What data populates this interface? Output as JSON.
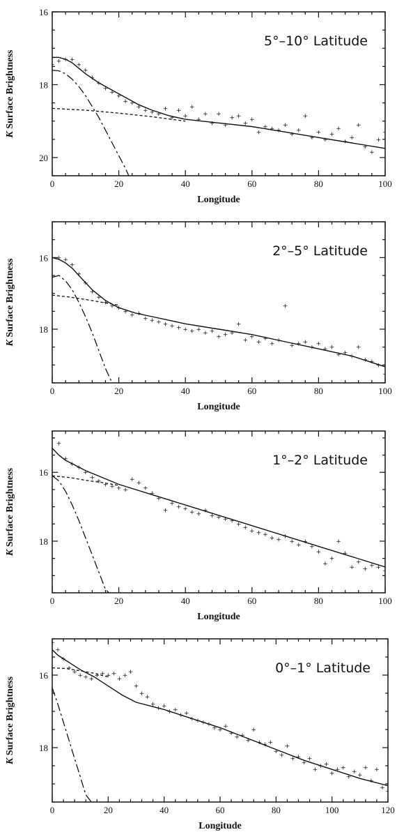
{
  "chart_data": [
    {
      "type": "scatter",
      "title": "5°–10° Latitude",
      "xlabel": "Longitude",
      "ylabel": "K Surface Brightness",
      "xlim": [
        0,
        100
      ],
      "ylim": [
        16,
        20.5
      ],
      "y_inverted": true,
      "xticks": [
        0,
        20,
        40,
        60,
        80,
        100
      ],
      "yticks": [
        16,
        18,
        20
      ],
      "series": [
        {
          "style": "plus-markers",
          "x": [
            0,
            2,
            4,
            6,
            8,
            10,
            12,
            14,
            16,
            18,
            20,
            22,
            24,
            26,
            28,
            30,
            32,
            34,
            36,
            38,
            40,
            42,
            44,
            46,
            48,
            50,
            52,
            54,
            56,
            58,
            60,
            62,
            64,
            66,
            68,
            70,
            72,
            74,
            76,
            78,
            80,
            82,
            84,
            86,
            88,
            90,
            92,
            94,
            96,
            98,
            100
          ],
          "y": [
            17.45,
            17.35,
            17.3,
            17.3,
            17.45,
            17.6,
            17.8,
            17.95,
            18.1,
            18.2,
            18.3,
            18.45,
            18.5,
            18.6,
            18.7,
            18.75,
            18.8,
            18.65,
            18.9,
            18.7,
            18.85,
            18.6,
            18.95,
            18.8,
            19.05,
            18.8,
            19.1,
            18.9,
            18.85,
            19.05,
            18.95,
            19.3,
            19.15,
            19.2,
            19.25,
            19.1,
            19.35,
            19.25,
            18.85,
            19.45,
            19.3,
            19.5,
            19.35,
            19.2,
            19.55,
            19.45,
            19.1,
            19.7,
            19.85,
            19.5,
            19.3
          ]
        },
        {
          "style": "solid",
          "x": [
            0,
            2,
            4,
            6,
            8,
            10,
            14,
            18,
            22,
            26,
            30,
            35,
            40,
            50,
            60,
            70,
            80,
            90,
            100
          ],
          "y": [
            17.25,
            17.25,
            17.3,
            17.4,
            17.55,
            17.7,
            17.95,
            18.15,
            18.35,
            18.55,
            18.7,
            18.85,
            18.95,
            19.05,
            19.15,
            19.3,
            19.45,
            19.6,
            19.75
          ]
        },
        {
          "style": "long-dash",
          "x": [
            0,
            2,
            4,
            6,
            8,
            10,
            12,
            14,
            16,
            18,
            20,
            22,
            23
          ],
          "y": [
            17.6,
            17.62,
            17.7,
            17.85,
            18.05,
            18.3,
            18.6,
            18.9,
            19.25,
            19.6,
            19.95,
            20.3,
            20.5
          ]
        },
        {
          "style": "short-dash",
          "x": [
            0,
            10,
            20,
            30,
            40
          ],
          "y": [
            18.65,
            18.7,
            18.78,
            18.88,
            19.0
          ]
        }
      ]
    },
    {
      "type": "scatter",
      "title": "2°–5° Latitude",
      "xlabel": "Longitude",
      "ylabel": "K Surface Brightness",
      "xlim": [
        0,
        100
      ],
      "ylim": [
        15,
        19.5
      ],
      "y_inverted": true,
      "xticks": [
        0,
        20,
        40,
        60,
        80,
        100
      ],
      "yticks": [
        16,
        18
      ],
      "series": [
        {
          "style": "plus-markers",
          "x": [
            0,
            2,
            4,
            6,
            8,
            10,
            12,
            14,
            16,
            18,
            20,
            22,
            24,
            26,
            28,
            30,
            32,
            34,
            36,
            38,
            40,
            42,
            44,
            46,
            48,
            50,
            52,
            54,
            56,
            58,
            60,
            62,
            64,
            66,
            68,
            70,
            72,
            74,
            76,
            78,
            80,
            82,
            84,
            86,
            88,
            90,
            92,
            94,
            96,
            98,
            100
          ],
          "y": [
            16.0,
            16.0,
            16.05,
            16.2,
            16.45,
            16.7,
            16.95,
            17.1,
            17.25,
            17.35,
            17.4,
            17.5,
            17.6,
            17.55,
            17.7,
            17.75,
            17.8,
            17.85,
            17.9,
            17.95,
            18.0,
            18.05,
            18.0,
            18.1,
            18.05,
            18.2,
            18.15,
            18.1,
            17.85,
            18.3,
            18.2,
            18.35,
            18.25,
            18.4,
            18.3,
            17.35,
            18.45,
            18.4,
            18.35,
            18.5,
            18.4,
            18.55,
            18.5,
            18.7,
            18.65,
            18.75,
            18.5,
            18.85,
            18.9,
            19.0,
            19.25
          ]
        },
        {
          "style": "solid",
          "x": [
            0,
            2,
            4,
            6,
            8,
            10,
            12,
            14,
            16,
            18,
            20,
            25,
            30,
            40,
            50,
            60,
            70,
            80,
            90,
            100
          ],
          "y": [
            16.0,
            16.05,
            16.15,
            16.3,
            16.5,
            16.7,
            16.9,
            17.05,
            17.2,
            17.3,
            17.4,
            17.55,
            17.65,
            17.85,
            18.0,
            18.15,
            18.35,
            18.55,
            18.75,
            19.05
          ]
        },
        {
          "style": "long-dash",
          "x": [
            0,
            2,
            4,
            6,
            8,
            10,
            12,
            14,
            16,
            18
          ],
          "y": [
            16.55,
            16.5,
            16.65,
            16.9,
            17.25,
            17.65,
            18.1,
            18.6,
            19.1,
            19.5
          ]
        },
        {
          "style": "short-dash",
          "x": [
            0,
            5,
            10,
            15,
            20
          ],
          "y": [
            17.05,
            17.1,
            17.17,
            17.25,
            17.33
          ]
        }
      ]
    },
    {
      "type": "scatter",
      "title": "1°–2° Latitude",
      "xlabel": "Longitude",
      "ylabel": "K Surface Brightness",
      "xlim": [
        0,
        100
      ],
      "ylim": [
        14.8,
        19.5
      ],
      "y_inverted": true,
      "xticks": [
        0,
        20,
        40,
        60,
        80,
        100
      ],
      "yticks": [
        16,
        18
      ],
      "series": [
        {
          "style": "plus-markers",
          "x": [
            0,
            2,
            4,
            6,
            8,
            10,
            12,
            14,
            16,
            18,
            20,
            22,
            24,
            26,
            28,
            30,
            32,
            34,
            36,
            38,
            40,
            42,
            44,
            46,
            48,
            50,
            52,
            54,
            56,
            58,
            60,
            62,
            64,
            66,
            68,
            70,
            72,
            74,
            76,
            78,
            80,
            82,
            84,
            86,
            88,
            90,
            92,
            94,
            96,
            98,
            100
          ],
          "y": [
            15.0,
            15.15,
            15.6,
            15.75,
            15.85,
            16.0,
            16.15,
            16.25,
            16.35,
            16.4,
            16.45,
            16.5,
            16.2,
            16.3,
            16.45,
            16.6,
            16.75,
            17.1,
            16.9,
            17.0,
            17.05,
            17.15,
            17.2,
            17.1,
            17.25,
            17.3,
            17.35,
            17.4,
            17.5,
            17.6,
            17.7,
            17.75,
            17.8,
            17.9,
            17.95,
            17.85,
            18.0,
            18.1,
            18.0,
            18.15,
            18.3,
            18.65,
            18.5,
            18.0,
            18.35,
            18.75,
            18.6,
            18.8,
            18.7,
            18.75,
            18.85
          ]
        },
        {
          "style": "solid",
          "x": [
            0,
            2,
            4,
            6,
            10,
            15,
            20,
            30,
            40,
            50,
            60,
            70,
            80,
            90,
            100
          ],
          "y": [
            15.3,
            15.5,
            15.65,
            15.75,
            15.95,
            16.15,
            16.35,
            16.65,
            16.95,
            17.25,
            17.55,
            17.85,
            18.15,
            18.45,
            18.75
          ]
        },
        {
          "style": "long-dash",
          "x": [
            0,
            2,
            4,
            6,
            8,
            10,
            12,
            14,
            16,
            17
          ],
          "y": [
            16.1,
            16.25,
            16.55,
            16.95,
            17.4,
            17.9,
            18.4,
            18.9,
            19.4,
            19.5
          ]
        },
        {
          "style": "short-dash",
          "x": [
            0,
            5,
            10,
            15,
            20
          ],
          "y": [
            16.1,
            16.15,
            16.23,
            16.3,
            16.38
          ]
        }
      ]
    },
    {
      "type": "scatter",
      "title": "0°–1° Latitude",
      "xlabel": "Longitude",
      "ylabel": "K Surface Brightness",
      "xlim": [
        0,
        120
      ],
      "ylim": [
        15,
        19.5
      ],
      "y_inverted": true,
      "xticks": [
        0,
        20,
        40,
        60,
        80,
        100,
        120
      ],
      "yticks": [
        16,
        18
      ],
      "series": [
        {
          "style": "plus-markers",
          "x": [
            0,
            2,
            4,
            6,
            8,
            10,
            12,
            14,
            16,
            18,
            20,
            22,
            24,
            26,
            28,
            30,
            32,
            34,
            36,
            38,
            40,
            42,
            44,
            46,
            48,
            50,
            52,
            54,
            56,
            58,
            60,
            62,
            64,
            66,
            68,
            70,
            72,
            74,
            76,
            78,
            80,
            82,
            84,
            86,
            88,
            90,
            92,
            94,
            96,
            98,
            100,
            102,
            104,
            106,
            108,
            110,
            112,
            114,
            116,
            118,
            120
          ],
          "y": [
            15.1,
            15.3,
            15.55,
            15.8,
            15.9,
            16.0,
            16.05,
            16.1,
            16.0,
            15.95,
            16.0,
            15.95,
            16.1,
            16.0,
            15.9,
            16.3,
            16.5,
            16.6,
            16.8,
            16.9,
            16.85,
            17.0,
            16.95,
            17.1,
            17.05,
            17.2,
            17.25,
            17.3,
            17.35,
            17.45,
            17.5,
            17.4,
            17.6,
            17.7,
            17.65,
            17.8,
            17.5,
            17.85,
            17.9,
            17.85,
            18.1,
            18.2,
            17.95,
            18.3,
            18.25,
            18.4,
            18.3,
            18.6,
            18.5,
            18.45,
            18.7,
            18.6,
            18.55,
            18.8,
            18.65,
            18.75,
            18.55,
            18.9,
            18.6,
            19.1,
            19.2
          ]
        },
        {
          "style": "solid",
          "x": [
            0,
            2,
            4,
            6,
            10,
            15,
            20,
            25,
            30,
            35,
            40,
            50,
            60,
            70,
            80,
            90,
            100,
            110,
            120
          ],
          "y": [
            15.3,
            15.45,
            15.55,
            15.65,
            15.85,
            16.05,
            16.3,
            16.55,
            16.75,
            16.85,
            16.95,
            17.2,
            17.45,
            17.75,
            18.05,
            18.35,
            18.6,
            18.85,
            19.05
          ]
        },
        {
          "style": "long-dash",
          "x": [
            0,
            2,
            4,
            6,
            8,
            10,
            12,
            14
          ],
          "y": [
            16.35,
            16.8,
            17.3,
            17.8,
            18.3,
            18.8,
            19.3,
            19.5
          ]
        },
        {
          "style": "short-dash",
          "x": [
            0,
            5,
            10,
            15,
            20
          ],
          "y": [
            15.8,
            15.82,
            15.88,
            15.95,
            16.05
          ]
        }
      ]
    }
  ]
}
